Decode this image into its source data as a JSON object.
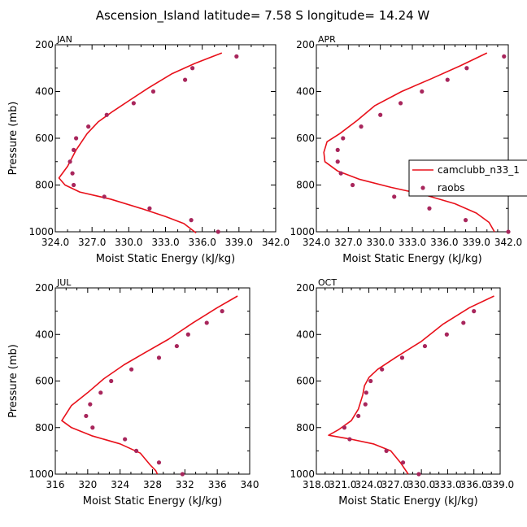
{
  "page_title": "Ascension_Island  latitude= 7.58 S longitude= 14.24 W",
  "legend": {
    "line_label": "camclubb_n33_1",
    "dot_label": "raobs"
  },
  "colors": {
    "model_line": "#e8101a",
    "obs_dots": "#a8265c",
    "axes": "#000000"
  },
  "chart_data": [
    {
      "type": "line",
      "panel_label": "JAN",
      "xlabel": "Moist Static Energy (kJ/kg)",
      "ylabel": "Pressure (mb)",
      "xlim": [
        324,
        342
      ],
      "ylim": [
        1000,
        200
      ],
      "xticks": [
        324,
        327,
        330,
        333,
        336,
        339,
        342
      ],
      "xtick_labels": [
        "324.0",
        "327.0",
        "330.0",
        "333.0",
        "336.0",
        "339.0",
        "342.0"
      ],
      "yticks": [
        200,
        400,
        600,
        800,
        1000
      ],
      "ytick_labels": [
        "200",
        "400",
        "600",
        "800",
        "1000"
      ],
      "series": [
        {
          "values": [
            [
              337.6,
              235
            ],
            [
              335.4,
              280
            ],
            [
              333.5,
              325
            ],
            [
              331.6,
              385
            ],
            [
              330.0,
              440
            ],
            [
              328.7,
              485
            ],
            [
              327.5,
              530
            ],
            [
              326.6,
              580
            ],
            [
              325.7,
              650
            ],
            [
              325.0,
              720
            ],
            [
              324.3,
              770
            ],
            [
              324.8,
              800
            ],
            [
              326.0,
              830
            ],
            [
              328.5,
              860
            ],
            [
              331.0,
              900
            ],
            [
              333.0,
              935
            ],
            [
              334.5,
              965
            ],
            [
              335.5,
              1005
            ]
          ]
        },
        {
          "values": [
            [
              338.8,
              250
            ],
            [
              335.2,
              300
            ],
            [
              334.6,
              350
            ],
            [
              332.0,
              400
            ],
            [
              330.4,
              450
            ],
            [
              328.2,
              500
            ],
            [
              326.7,
              550
            ],
            [
              325.7,
              600
            ],
            [
              325.5,
              650
            ],
            [
              325.2,
              700
            ],
            [
              325.4,
              750
            ],
            [
              325.5,
              800
            ],
            [
              328.0,
              850
            ],
            [
              331.7,
              900
            ],
            [
              335.1,
              950
            ],
            [
              337.3,
              1000
            ]
          ]
        }
      ]
    },
    {
      "type": "line",
      "panel_label": "APR",
      "xlabel": "Moist Static Energy (kJ/kg)",
      "ylabel": "",
      "xlim": [
        324,
        342
      ],
      "ylim": [
        1000,
        200
      ],
      "xticks": [
        324,
        327,
        330,
        333,
        336,
        339,
        342
      ],
      "xtick_labels": [
        "324.0",
        "327.0",
        "330.0",
        "333.0",
        "336.0",
        "339.0",
        "342.0"
      ],
      "yticks": [
        200,
        400,
        600,
        800,
        1000
      ],
      "ytick_labels": [
        "200",
        "400",
        "600",
        "800",
        "1000"
      ],
      "series": [
        {
          "values": [
            [
              340.0,
              235
            ],
            [
              337.5,
              290
            ],
            [
              334.8,
              345
            ],
            [
              332.0,
              400
            ],
            [
              329.5,
              460
            ],
            [
              327.8,
              525
            ],
            [
              326.2,
              580
            ],
            [
              325.0,
              615
            ],
            [
              324.7,
              660
            ],
            [
              324.8,
              700
            ],
            [
              326.0,
              740
            ],
            [
              328.0,
              775
            ],
            [
              331.0,
              810
            ],
            [
              334.0,
              840
            ],
            [
              337.0,
              880
            ],
            [
              339.0,
              920
            ],
            [
              340.2,
              960
            ],
            [
              340.7,
              1000
            ]
          ]
        },
        {
          "values": [
            [
              341.6,
              250
            ],
            [
              338.1,
              300
            ],
            [
              336.3,
              350
            ],
            [
              333.9,
              400
            ],
            [
              331.9,
              450
            ],
            [
              330.0,
              500
            ],
            [
              328.2,
              550
            ],
            [
              326.5,
              600
            ],
            [
              326.0,
              650
            ],
            [
              326.0,
              700
            ],
            [
              326.3,
              750
            ],
            [
              327.4,
              800
            ],
            [
              331.3,
              850
            ],
            [
              334.6,
              900
            ],
            [
              338.0,
              950
            ],
            [
              342.0,
              1000
            ]
          ]
        }
      ]
    },
    {
      "type": "line",
      "panel_label": "JUL",
      "xlabel": "Moist Static Energy (kJ/kg)",
      "ylabel": "Pressure (mb)",
      "xlim": [
        316,
        340
      ],
      "ylim": [
        1000,
        200
      ],
      "xticks": [
        316,
        320,
        324,
        328,
        332,
        336,
        340
      ],
      "xtick_labels": [
        "316",
        "320",
        "324",
        "328",
        "332",
        "336",
        "340"
      ],
      "series": [
        {
          "values": [
            [
              338.5,
              235
            ],
            [
              336.0,
              285
            ],
            [
              333.0,
              350
            ],
            [
              330.0,
              420
            ],
            [
              327.0,
              480
            ],
            [
              324.5,
              530
            ],
            [
              322.0,
              590
            ],
            [
              320.0,
              650
            ],
            [
              318.0,
              705
            ],
            [
              316.8,
              770
            ],
            [
              318.0,
              800
            ],
            [
              320.5,
              835
            ],
            [
              324.0,
              870
            ],
            [
              326.5,
              910
            ],
            [
              327.7,
              960
            ],
            [
              328.4,
              985
            ],
            [
              328.6,
              1000
            ]
          ]
        },
        {
          "values": [
            [
              336.6,
              300
            ],
            [
              334.7,
              350
            ],
            [
              332.4,
              400
            ],
            [
              331.0,
              450
            ],
            [
              328.8,
              500
            ],
            [
              325.4,
              550
            ],
            [
              322.9,
              600
            ],
            [
              321.6,
              650
            ],
            [
              320.3,
              700
            ],
            [
              319.8,
              750
            ],
            [
              320.6,
              800
            ],
            [
              324.6,
              850
            ],
            [
              326.0,
              900
            ],
            [
              328.8,
              950
            ],
            [
              331.7,
              1000
            ]
          ]
        }
      ],
      "yticks": [
        200,
        400,
        600,
        800,
        1000
      ],
      "ytick_labels": [
        "200",
        "400",
        "600",
        "800",
        "1000"
      ]
    },
    {
      "type": "line",
      "panel_label": "OCT",
      "xlabel": "Moist Static Energy (kJ/kg)",
      "ylabel": "",
      "xlim": [
        318,
        339
      ],
      "ylim": [
        1000,
        200
      ],
      "xticks": [
        318,
        321,
        324,
        327,
        330,
        333,
        336,
        339
      ],
      "xtick_labels": [
        "318.0",
        "321.0",
        "324.0",
        "327.0",
        "330.0",
        "333.0",
        "336.0",
        "339.0"
      ],
      "yticks": [
        200,
        400,
        600,
        800,
        1000
      ],
      "ytick_labels": [
        "200",
        "400",
        "600",
        "800",
        "1000"
      ],
      "series": [
        {
          "values": [
            [
              338.3,
              235
            ],
            [
              335.5,
              285
            ],
            [
              332.5,
              355
            ],
            [
              330.0,
              430
            ],
            [
              327.0,
              500
            ],
            [
              325.0,
              550
            ],
            [
              324.0,
              585
            ],
            [
              323.5,
              620
            ],
            [
              323.3,
              660
            ],
            [
              322.8,
              720
            ],
            [
              322.0,
              770
            ],
            [
              320.5,
              810
            ],
            [
              319.4,
              833
            ],
            [
              322.0,
              850
            ],
            [
              324.5,
              870
            ],
            [
              326.5,
              900
            ],
            [
              327.6,
              950
            ],
            [
              328.5,
              1000
            ]
          ]
        },
        {
          "values": [
            [
              336.0,
              300
            ],
            [
              334.8,
              350
            ],
            [
              332.9,
              400
            ],
            [
              330.4,
              450
            ],
            [
              327.8,
              500
            ],
            [
              325.5,
              550
            ],
            [
              324.2,
              600
            ],
            [
              323.7,
              650
            ],
            [
              323.6,
              700
            ],
            [
              322.8,
              750
            ],
            [
              321.2,
              800
            ],
            [
              321.8,
              850
            ],
            [
              326.0,
              900
            ],
            [
              327.9,
              950
            ],
            [
              329.7,
              1000
            ]
          ]
        }
      ]
    }
  ]
}
